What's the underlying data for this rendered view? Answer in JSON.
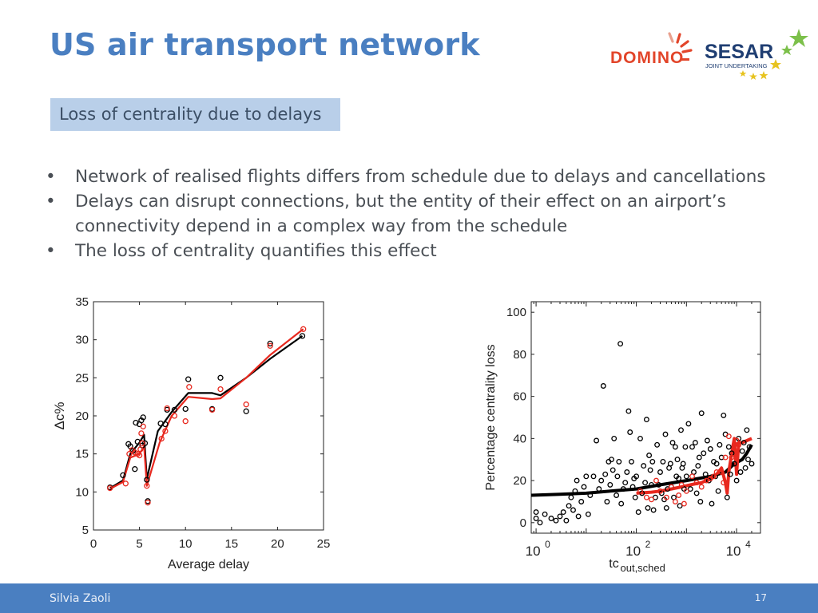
{
  "slide": {
    "title": "US air transport network",
    "subtitle": "Loss of centrality due to delays",
    "bullets": [
      "Network of realised flights differs from schedule due to delays and cancellations",
      "Delays can disrupt connections, but the entity of their effect on an airport’s connectivity depend in a complex way from the schedule",
      "The loss of centrality quantifies this effect"
    ],
    "footer_author": "Silvia Zaoli",
    "page_number": "17"
  },
  "logos": {
    "domino": "DOMINO",
    "sesar": "SESAR",
    "sesar_sub": "JOINT UNDERTAKING"
  },
  "colors": {
    "accent": "#4a7fc1",
    "subtitle_bg": "#b9cfe9",
    "domino_red": "#e2452a",
    "sesar_navy": "#1f3e72",
    "star_green": "#7cc04a",
    "star_yellow": "#e7c31f",
    "series_black": "#000000",
    "series_red": "#e8281e"
  },
  "chart_data": [
    {
      "type": "scatter",
      "xlabel": "Average delay",
      "ylabel": "Δc%",
      "xlim": [
        0,
        25
      ],
      "ylim": [
        5,
        35
      ],
      "xticks": [
        "0",
        "5",
        "10",
        "15",
        "20",
        "25"
      ],
      "yticks": [
        "5",
        "10",
        "15",
        "20",
        "25",
        "30",
        "35"
      ],
      "grid": false,
      "series": [
        {
          "color": "black",
          "points": [
            [
              1.8,
              10.6
            ],
            [
              3.2,
              12.2
            ],
            [
              3.8,
              16.3
            ],
            [
              4.0,
              16.0
            ],
            [
              4.3,
              15.4
            ],
            [
              4.5,
              13.0
            ],
            [
              4.6,
              19.1
            ],
            [
              4.8,
              16.6
            ],
            [
              5.0,
              18.9
            ],
            [
              5.2,
              19.4
            ],
            [
              5.3,
              16.1
            ],
            [
              5.4,
              19.8
            ],
            [
              5.6,
              16.4
            ],
            [
              5.8,
              11.6
            ],
            [
              5.9,
              8.8
            ],
            [
              7.3,
              19.0
            ],
            [
              7.8,
              18.9
            ],
            [
              8.0,
              20.8
            ],
            [
              8.8,
              20.8
            ],
            [
              10.0,
              20.9
            ],
            [
              10.3,
              24.8
            ],
            [
              12.9,
              20.9
            ],
            [
              13.8,
              25.0
            ],
            [
              16.6,
              20.6
            ],
            [
              19.2,
              29.5
            ],
            [
              22.7,
              30.5
            ]
          ]
        },
        {
          "color": "red",
          "points": [
            [
              1.8,
              10.5
            ],
            [
              3.5,
              11.1
            ],
            [
              3.9,
              15.0
            ],
            [
              4.2,
              15.5
            ],
            [
              4.5,
              15.2
            ],
            [
              4.8,
              15.0
            ],
            [
              5.0,
              14.8
            ],
            [
              5.1,
              15.6
            ],
            [
              5.2,
              17.7
            ],
            [
              5.3,
              16.4
            ],
            [
              5.4,
              18.6
            ],
            [
              5.8,
              10.8
            ],
            [
              5.9,
              8.6
            ],
            [
              7.4,
              17.0
            ],
            [
              7.8,
              18.0
            ],
            [
              8.0,
              21.0
            ],
            [
              8.8,
              20.0
            ],
            [
              10.0,
              19.3
            ],
            [
              10.4,
              23.8
            ],
            [
              12.9,
              20.8
            ],
            [
              13.8,
              23.5
            ],
            [
              16.6,
              21.5
            ],
            [
              19.2,
              29.2
            ],
            [
              22.8,
              31.4
            ]
          ]
        }
      ],
      "lines": [
        {
          "color": "black",
          "points": [
            [
              1.8,
              10.5
            ],
            [
              3.2,
              11.5
            ],
            [
              4.0,
              15.0
            ],
            [
              5.0,
              16.5
            ],
            [
              5.5,
              17.5
            ],
            [
              5.8,
              11.7
            ],
            [
              7.0,
              18.0
            ],
            [
              8.5,
              20.5
            ],
            [
              10.3,
              23.0
            ],
            [
              12.9,
              23.0
            ],
            [
              13.8,
              22.7
            ],
            [
              16.6,
              25.0
            ],
            [
              19.2,
              27.5
            ],
            [
              22.7,
              30.5
            ]
          ]
        },
        {
          "color": "red",
          "points": [
            [
              1.8,
              10.4
            ],
            [
              3.2,
              11.3
            ],
            [
              4.0,
              14.5
            ],
            [
              5.0,
              15.0
            ],
            [
              5.5,
              16.0
            ],
            [
              5.8,
              10.8
            ],
            [
              7.2,
              16.5
            ],
            [
              8.5,
              20.0
            ],
            [
              10.3,
              22.5
            ],
            [
              12.9,
              22.2
            ],
            [
              13.8,
              22.3
            ],
            [
              16.6,
              25.0
            ],
            [
              19.2,
              28.0
            ],
            [
              22.8,
              31.4
            ]
          ]
        }
      ]
    },
    {
      "type": "scatter",
      "xlabel": "tc",
      "xlabel_sub": "out,sched",
      "ylabel": "Percentage centrality loss",
      "xscale": "log",
      "xlim": [
        0.8,
        30000
      ],
      "ylim": [
        -5,
        105
      ],
      "xticks": [
        {
          "base": "10",
          "exp": "0",
          "value": 1
        },
        {
          "base": "10",
          "exp": "2",
          "value": 100
        },
        {
          "base": "10",
          "exp": "4",
          "value": 10000
        }
      ],
      "yticks": [
        "0",
        "20",
        "40",
        "60",
        "80",
        "100"
      ],
      "grid": false,
      "series": [
        {
          "color": "black",
          "points": [
            [
              1,
              2
            ],
            [
              1,
              5
            ],
            [
              1.2,
              0
            ],
            [
              1.5,
              4
            ],
            [
              2,
              2
            ],
            [
              2.5,
              1
            ],
            [
              3,
              3
            ],
            [
              3.5,
              5
            ],
            [
              4,
              1
            ],
            [
              4.5,
              8
            ],
            [
              5,
              12
            ],
            [
              5.5,
              6
            ],
            [
              6,
              15
            ],
            [
              6.5,
              20
            ],
            [
              7,
              3
            ],
            [
              8,
              10
            ],
            [
              9,
              17
            ],
            [
              10,
              22
            ],
            [
              11,
              4
            ],
            [
              12,
              13
            ],
            [
              14,
              22
            ],
            [
              16,
              39
            ],
            [
              18,
              16
            ],
            [
              20,
              20
            ],
            [
              22,
              65
            ],
            [
              24,
              23
            ],
            [
              26,
              10
            ],
            [
              28,
              29
            ],
            [
              30,
              18
            ],
            [
              32,
              30
            ],
            [
              34,
              25
            ],
            [
              36,
              40
            ],
            [
              40,
              13
            ],
            [
              42,
              22
            ],
            [
              45,
              29
            ],
            [
              48,
              85
            ],
            [
              50,
              9
            ],
            [
              55,
              16
            ],
            [
              60,
              19
            ],
            [
              65,
              24
            ],
            [
              70,
              53
            ],
            [
              75,
              43
            ],
            [
              80,
              29
            ],
            [
              85,
              17
            ],
            [
              90,
              21
            ],
            [
              95,
              12
            ],
            [
              100,
              22
            ],
            [
              110,
              5
            ],
            [
              120,
              40
            ],
            [
              130,
              14
            ],
            [
              140,
              27
            ],
            [
              150,
              19
            ],
            [
              160,
              49
            ],
            [
              170,
              7
            ],
            [
              180,
              32
            ],
            [
              190,
              25
            ],
            [
              200,
              18
            ],
            [
              210,
              29
            ],
            [
              220,
              6
            ],
            [
              240,
              12
            ],
            [
              260,
              37
            ],
            [
              280,
              18
            ],
            [
              300,
              24
            ],
            [
              320,
              14
            ],
            [
              340,
              29
            ],
            [
              360,
              11
            ],
            [
              380,
              42
            ],
            [
              400,
              7
            ],
            [
              420,
              16
            ],
            [
              450,
              26
            ],
            [
              480,
              28
            ],
            [
              500,
              17
            ],
            [
              530,
              38
            ],
            [
              560,
              12
            ],
            [
              600,
              36
            ],
            [
              630,
              22
            ],
            [
              660,
              30
            ],
            [
              700,
              21
            ],
            [
              740,
              8
            ],
            [
              780,
              44
            ],
            [
              820,
              26
            ],
            [
              860,
              28
            ],
            [
              900,
              16
            ],
            [
              950,
              36
            ],
            [
              1000,
              22
            ],
            [
              1100,
              47
            ],
            [
              1200,
              16
            ],
            [
              1300,
              36
            ],
            [
              1400,
              24
            ],
            [
              1500,
              38
            ],
            [
              1600,
              14
            ],
            [
              1700,
              27
            ],
            [
              1800,
              31
            ],
            [
              1900,
              10
            ],
            [
              2000,
              52
            ],
            [
              2200,
              33
            ],
            [
              2400,
              23
            ],
            [
              2600,
              39
            ],
            [
              2800,
              20
            ],
            [
              3000,
              35
            ],
            [
              3200,
              9
            ],
            [
              3500,
              29
            ],
            [
              3800,
              22
            ],
            [
              4000,
              28
            ],
            [
              4300,
              15
            ],
            [
              4600,
              37
            ],
            [
              5000,
              31
            ],
            [
              5500,
              51
            ],
            [
              6000,
              42
            ],
            [
              6500,
              12
            ],
            [
              7000,
              36
            ],
            [
              7500,
              23
            ],
            [
              8000,
              33
            ],
            [
              9000,
              28
            ],
            [
              10000,
              20
            ],
            [
              11000,
              40
            ],
            [
              12000,
              24
            ],
            [
              13000,
              34
            ],
            [
              14000,
              38
            ],
            [
              15000,
              26
            ],
            [
              16000,
              44
            ],
            [
              17000,
              30
            ],
            [
              18000,
              36
            ],
            [
              20000,
              28
            ]
          ]
        },
        {
          "color": "red",
          "points": [
            [
              120,
              15
            ],
            [
              160,
              12
            ],
            [
              200,
              11
            ],
            [
              250,
              20
            ],
            [
              300,
              15
            ],
            [
              400,
              12
            ],
            [
              500,
              17
            ],
            [
              600,
              10
            ],
            [
              700,
              13
            ],
            [
              800,
              18
            ],
            [
              900,
              9
            ],
            [
              1000,
              15
            ],
            [
              1300,
              22
            ],
            [
              1600,
              19
            ],
            [
              2000,
              17
            ],
            [
              2500,
              20
            ],
            [
              3000,
              21
            ],
            [
              3500,
              22
            ],
            [
              4000,
              24
            ],
            [
              5000,
              24
            ],
            [
              5500,
              19
            ],
            [
              6000,
              31
            ],
            [
              7000,
              41
            ],
            [
              8000,
              31
            ],
            [
              9000,
              37
            ],
            [
              10000,
              39
            ],
            [
              11000,
              37
            ]
          ]
        }
      ],
      "lines": [
        {
          "color": "black",
          "points": [
            [
              0.8,
              13
            ],
            [
              3,
              13.5
            ],
            [
              10,
              14
            ],
            [
              30,
              15
            ],
            [
              100,
              16
            ],
            [
              300,
              18
            ],
            [
              1000,
              20
            ],
            [
              3000,
              22
            ],
            [
              6000,
              24
            ],
            [
              9000,
              28
            ],
            [
              13000,
              30
            ],
            [
              16000,
              33
            ],
            [
              20000,
              37
            ]
          ]
        },
        {
          "color": "red",
          "points": [
            [
              100,
              14
            ],
            [
              200,
              14.5
            ],
            [
              300,
              15
            ],
            [
              500,
              16
            ],
            [
              800,
              17
            ],
            [
              1200,
              18
            ],
            [
              2000,
              19
            ],
            [
              3000,
              21
            ],
            [
              4000,
              23
            ],
            [
              5000,
              26
            ],
            [
              6000,
              19
            ],
            [
              6500,
              14
            ],
            [
              7000,
              24
            ],
            [
              8000,
              33
            ],
            [
              9000,
              40
            ],
            [
              10000,
              23
            ],
            [
              11000,
              38
            ],
            [
              13000,
              38
            ],
            [
              16000,
              39
            ],
            [
              20000,
              40
            ]
          ]
        }
      ]
    }
  ]
}
